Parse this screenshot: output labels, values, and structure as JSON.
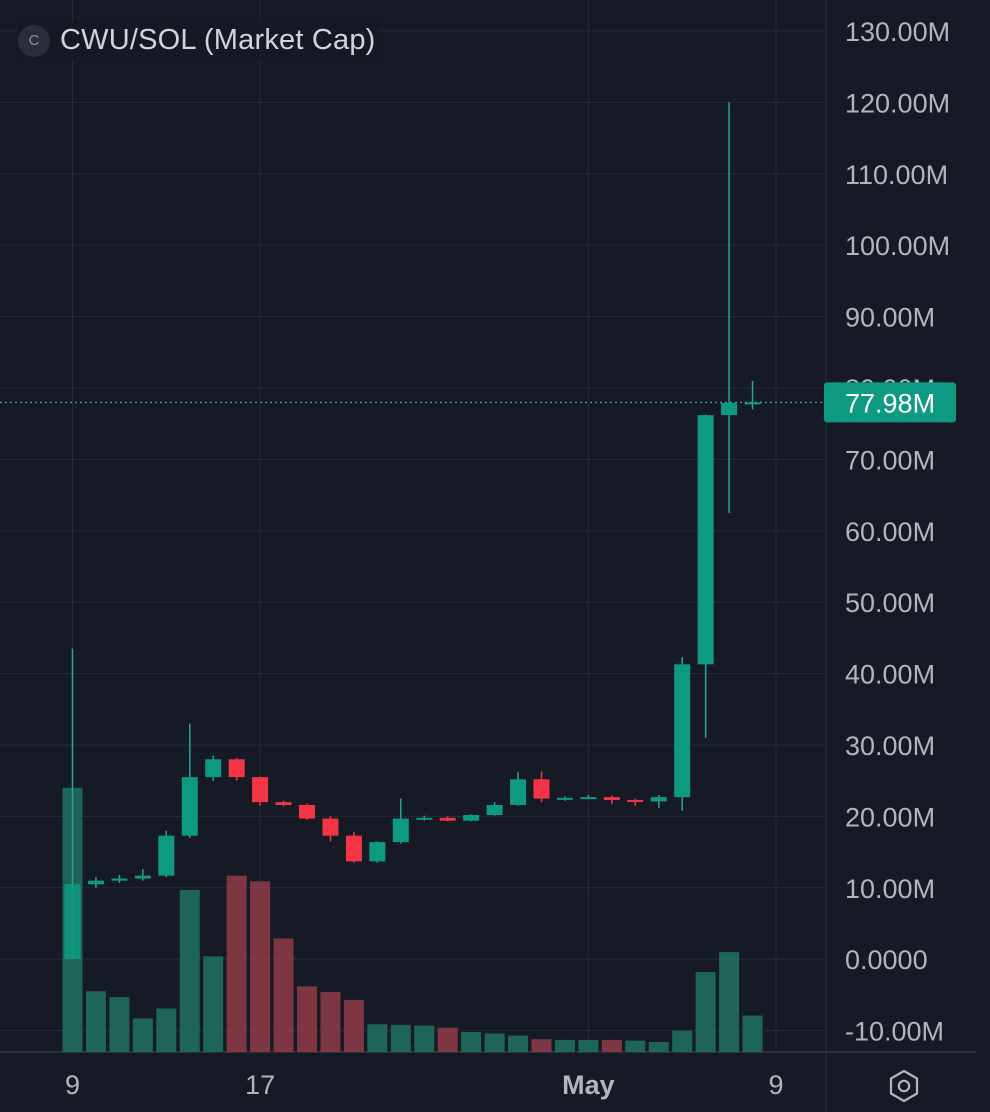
{
  "header": {
    "badge": "C",
    "title": "CWU/SOL (Market Cap)"
  },
  "colors": {
    "background": "#161a25",
    "grid": "#262a36",
    "axis_text": "#b2b5be",
    "up": "#26a69a",
    "up_body": "#0e9a82",
    "down": "#f23645",
    "volume_up": "#1f6e5e",
    "volume_down": "#8a3a47",
    "price_label_bg": "#0e9a82"
  },
  "icons": {
    "settings": "gear-hexagon-icon"
  },
  "chart_data": {
    "type": "candlestick",
    "ylim": [
      -14000000,
      133000000
    ],
    "yticks": [
      {
        "value": 130000000,
        "label": "130.00M"
      },
      {
        "value": 120000000,
        "label": "120.00M"
      },
      {
        "value": 110000000,
        "label": "110.00M"
      },
      {
        "value": 100000000,
        "label": "100.00M"
      },
      {
        "value": 90000000,
        "label": "90.00M"
      },
      {
        "value": 70000000,
        "label": "70.00M"
      },
      {
        "value": 60000000,
        "label": "60.00M"
      },
      {
        "value": 50000000,
        "label": "50.00M"
      },
      {
        "value": 40000000,
        "label": "40.00M"
      },
      {
        "value": 30000000,
        "label": "30.00M"
      },
      {
        "value": 20000000,
        "label": "20.00M"
      },
      {
        "value": 10000000,
        "label": "10.00M"
      },
      {
        "value": 0,
        "label": "0.0000"
      },
      {
        "value": -10000000,
        "label": "-10.00M"
      }
    ],
    "hidden_tick": {
      "value": 80000000,
      "label": "80.00M"
    },
    "xticks": [
      {
        "index": 0,
        "label": "9"
      },
      {
        "index": 8,
        "label": "17"
      },
      {
        "index": 22,
        "label": "May"
      },
      {
        "index": 30,
        "label": "9"
      }
    ],
    "last_price": {
      "value": 77980000,
      "label": "77.98M"
    },
    "candles": [
      {
        "o": 0,
        "h": 43500000,
        "l": 0,
        "c": 10500000
      },
      {
        "o": 10500000,
        "h": 11500000,
        "l": 10000000,
        "c": 11000000
      },
      {
        "o": 11000000,
        "h": 11800000,
        "l": 10700000,
        "c": 11300000
      },
      {
        "o": 11300000,
        "h": 12600000,
        "l": 11000000,
        "c": 11700000
      },
      {
        "o": 11700000,
        "h": 18000000,
        "l": 11500000,
        "c": 17300000
      },
      {
        "o": 17300000,
        "h": 33000000,
        "l": 17000000,
        "c": 25500000
      },
      {
        "o": 25500000,
        "h": 28500000,
        "l": 25000000,
        "c": 28000000
      },
      {
        "o": 28000000,
        "h": 28200000,
        "l": 25000000,
        "c": 25500000
      },
      {
        "o": 25500000,
        "h": 25600000,
        "l": 21500000,
        "c": 22000000
      },
      {
        "o": 22000000,
        "h": 22200000,
        "l": 21400000,
        "c": 21600000
      },
      {
        "o": 21600000,
        "h": 21800000,
        "l": 19500000,
        "c": 19700000
      },
      {
        "o": 19700000,
        "h": 20000000,
        "l": 16500000,
        "c": 17300000
      },
      {
        "o": 17300000,
        "h": 17800000,
        "l": 13500000,
        "c": 13700000
      },
      {
        "o": 13700000,
        "h": 16500000,
        "l": 13500000,
        "c": 16400000
      },
      {
        "o": 16400000,
        "h": 22500000,
        "l": 16200000,
        "c": 19700000
      },
      {
        "o": 19700000,
        "h": 20100000,
        "l": 19400000,
        "c": 19800000
      },
      {
        "o": 19800000,
        "h": 20000000,
        "l": 19300000,
        "c": 19400000
      },
      {
        "o": 19400000,
        "h": 20300000,
        "l": 19300000,
        "c": 20200000
      },
      {
        "o": 20200000,
        "h": 22000000,
        "l": 20100000,
        "c": 21600000
      },
      {
        "o": 21600000,
        "h": 26200000,
        "l": 21500000,
        "c": 25200000
      },
      {
        "o": 25200000,
        "h": 26300000,
        "l": 22000000,
        "c": 22500000
      },
      {
        "o": 22500000,
        "h": 22800000,
        "l": 22200000,
        "c": 22600000
      },
      {
        "o": 22600000,
        "h": 23000000,
        "l": 22400000,
        "c": 22700000
      },
      {
        "o": 22700000,
        "h": 22900000,
        "l": 21700000,
        "c": 22300000
      },
      {
        "o": 22300000,
        "h": 22500000,
        "l": 21500000,
        "c": 22100000
      },
      {
        "o": 22100000,
        "h": 23000000,
        "l": 21200000,
        "c": 22700000
      },
      {
        "o": 22700000,
        "h": 42300000,
        "l": 20800000,
        "c": 41300000
      },
      {
        "o": 41300000,
        "h": 76300000,
        "l": 31000000,
        "c": 76200000
      },
      {
        "o": 76200000,
        "h": 120000000,
        "l": 62500000,
        "c": 77900000
      },
      {
        "o": 77900000,
        "h": 81000000,
        "l": 77000000,
        "c": 77980000
      }
    ],
    "volume": [
      {
        "v": 24000000,
        "up": true
      },
      {
        "v": -4500000,
        "up": true
      },
      {
        "v": -5300000,
        "up": true
      },
      {
        "v": -8300000,
        "up": true
      },
      {
        "v": -6900000,
        "up": true
      },
      {
        "v": 9700000,
        "up": true
      },
      {
        "v": 400000,
        "up": true
      },
      {
        "v": 11700000,
        "up": false
      },
      {
        "v": 10900000,
        "up": false
      },
      {
        "v": 2900000,
        "up": false
      },
      {
        "v": -3800000,
        "up": false
      },
      {
        "v": -4600000,
        "up": false
      },
      {
        "v": -5700000,
        "up": false
      },
      {
        "v": -9100000,
        "up": true
      },
      {
        "v": -9200000,
        "up": true
      },
      {
        "v": -9300000,
        "up": true
      },
      {
        "v": -9600000,
        "up": false
      },
      {
        "v": -10200000,
        "up": true
      },
      {
        "v": -10400000,
        "up": true
      },
      {
        "v": -10700000,
        "up": true
      },
      {
        "v": -11200000,
        "up": false
      },
      {
        "v": -11300000,
        "up": true
      },
      {
        "v": -11300000,
        "up": true
      },
      {
        "v": -11300000,
        "up": false
      },
      {
        "v": -11400000,
        "up": true
      },
      {
        "v": -11600000,
        "up": true
      },
      {
        "v": -10000000,
        "up": true
      },
      {
        "v": -1800000,
        "up": true
      },
      {
        "v": 1000000,
        "up": true
      },
      {
        "v": -7900000,
        "up": true
      }
    ]
  }
}
